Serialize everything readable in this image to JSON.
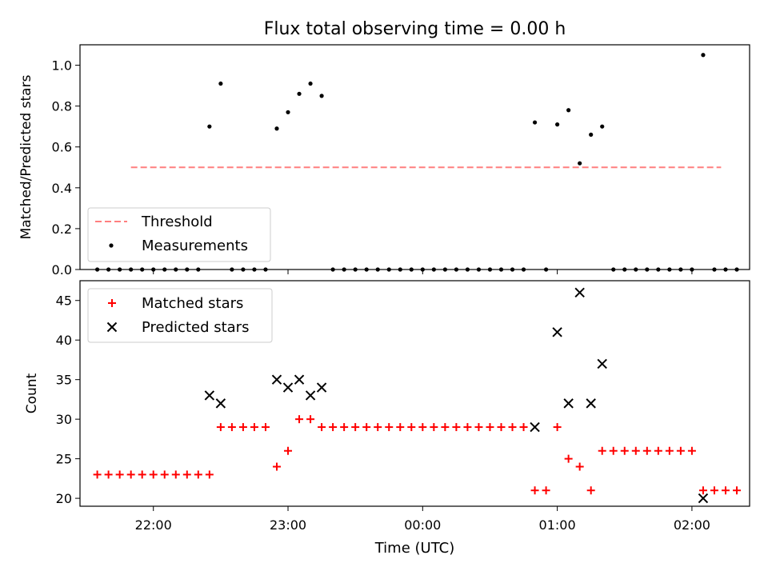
{
  "title": "Flux total observing time = 0.00 h",
  "xlabel": "Time (UTC)",
  "xticks": [
    "22:00",
    "23:00",
    "00:00",
    "01:00",
    "02:00"
  ],
  "colors": {
    "threshold": "#ff7f7f",
    "measurements": "#000000",
    "matched": "#ff0000",
    "predicted": "#000000"
  },
  "chart_data": [
    {
      "type": "scatter",
      "ylabel": "Matched/Predicted stars",
      "ylim": [
        0,
        1.1
      ],
      "yticks": [
        "0.0",
        "0.2",
        "0.4",
        "0.6",
        "0.8",
        "1.0"
      ],
      "threshold": {
        "name": "Threshold",
        "value": 0.5,
        "x_start": "21:50",
        "x_end": "02:13"
      },
      "legend": [
        "Threshold",
        "Measurements"
      ],
      "legend_position": "lower left",
      "measurements": [
        [
          "21:35",
          0
        ],
        [
          "21:40",
          0
        ],
        [
          "21:45",
          0
        ],
        [
          "21:50",
          0
        ],
        [
          "21:55",
          0
        ],
        [
          "22:00",
          0
        ],
        [
          "22:05",
          0
        ],
        [
          "22:10",
          0
        ],
        [
          "22:15",
          0
        ],
        [
          "22:20",
          0
        ],
        [
          "22:25",
          0.7
        ],
        [
          "22:30",
          0.91
        ],
        [
          "22:35",
          0
        ],
        [
          "22:40",
          0
        ],
        [
          "22:45",
          0
        ],
        [
          "22:50",
          0
        ],
        [
          "22:55",
          0.69
        ],
        [
          "23:00",
          0.77
        ],
        [
          "23:05",
          0.86
        ],
        [
          "23:10",
          0.91
        ],
        [
          "23:15",
          0.85
        ],
        [
          "23:20",
          0
        ],
        [
          "23:25",
          0
        ],
        [
          "23:30",
          0
        ],
        [
          "23:35",
          0
        ],
        [
          "23:40",
          0
        ],
        [
          "23:45",
          0
        ],
        [
          "23:50",
          0
        ],
        [
          "23:55",
          0
        ],
        [
          "00:00",
          0
        ],
        [
          "00:05",
          0
        ],
        [
          "00:10",
          0
        ],
        [
          "00:15",
          0
        ],
        [
          "00:20",
          0
        ],
        [
          "00:25",
          0
        ],
        [
          "00:30",
          0
        ],
        [
          "00:35",
          0
        ],
        [
          "00:40",
          0
        ],
        [
          "00:45",
          0
        ],
        [
          "00:50",
          0.72
        ],
        [
          "00:55",
          0
        ],
        [
          "01:00",
          0.71
        ],
        [
          "01:05",
          0.78
        ],
        [
          "01:10",
          0.52
        ],
        [
          "01:15",
          0.66
        ],
        [
          "01:20",
          0.7
        ],
        [
          "01:25",
          0
        ],
        [
          "01:30",
          0
        ],
        [
          "01:35",
          0
        ],
        [
          "01:40",
          0
        ],
        [
          "01:45",
          0
        ],
        [
          "01:50",
          0
        ],
        [
          "01:55",
          0
        ],
        [
          "02:00",
          0
        ],
        [
          "02:05",
          1.05
        ],
        [
          "02:10",
          0
        ],
        [
          "02:15",
          0
        ],
        [
          "02:20",
          0
        ]
      ]
    },
    {
      "type": "scatter",
      "ylabel": "Count",
      "ylim": [
        19,
        47.5
      ],
      "yticks": [
        "20",
        "25",
        "30",
        "35",
        "40",
        "45"
      ],
      "legend": [
        "Matched stars",
        "Predicted stars"
      ],
      "legend_position": "upper left",
      "matched": [
        [
          "21:35",
          23
        ],
        [
          "21:40",
          23
        ],
        [
          "21:45",
          23
        ],
        [
          "21:50",
          23
        ],
        [
          "21:55",
          23
        ],
        [
          "22:00",
          23
        ],
        [
          "22:05",
          23
        ],
        [
          "22:10",
          23
        ],
        [
          "22:15",
          23
        ],
        [
          "22:20",
          23
        ],
        [
          "22:25",
          23
        ],
        [
          "22:30",
          29
        ],
        [
          "22:35",
          29
        ],
        [
          "22:40",
          29
        ],
        [
          "22:45",
          29
        ],
        [
          "22:50",
          29
        ],
        [
          "22:55",
          24
        ],
        [
          "23:00",
          26
        ],
        [
          "23:05",
          30
        ],
        [
          "23:10",
          30
        ],
        [
          "23:15",
          29
        ],
        [
          "23:20",
          29
        ],
        [
          "23:25",
          29
        ],
        [
          "23:30",
          29
        ],
        [
          "23:35",
          29
        ],
        [
          "23:40",
          29
        ],
        [
          "23:45",
          29
        ],
        [
          "23:50",
          29
        ],
        [
          "23:55",
          29
        ],
        [
          "00:00",
          29
        ],
        [
          "00:05",
          29
        ],
        [
          "00:10",
          29
        ],
        [
          "00:15",
          29
        ],
        [
          "00:20",
          29
        ],
        [
          "00:25",
          29
        ],
        [
          "00:30",
          29
        ],
        [
          "00:35",
          29
        ],
        [
          "00:40",
          29
        ],
        [
          "00:45",
          29
        ],
        [
          "00:50",
          21
        ],
        [
          "00:55",
          21
        ],
        [
          "01:00",
          29
        ],
        [
          "01:05",
          25
        ],
        [
          "01:10",
          24
        ],
        [
          "01:15",
          21
        ],
        [
          "01:20",
          26
        ],
        [
          "01:25",
          26
        ],
        [
          "01:30",
          26
        ],
        [
          "01:35",
          26
        ],
        [
          "01:40",
          26
        ],
        [
          "01:45",
          26
        ],
        [
          "01:50",
          26
        ],
        [
          "01:55",
          26
        ],
        [
          "02:00",
          26
        ],
        [
          "02:05",
          21
        ],
        [
          "02:10",
          21
        ],
        [
          "02:15",
          21
        ],
        [
          "02:20",
          21
        ]
      ],
      "predicted": [
        [
          "22:25",
          33
        ],
        [
          "22:30",
          32
        ],
        [
          "22:55",
          35
        ],
        [
          "23:00",
          34
        ],
        [
          "23:05",
          35
        ],
        [
          "23:10",
          33
        ],
        [
          "23:15",
          34
        ],
        [
          "00:50",
          29
        ],
        [
          "01:00",
          41
        ],
        [
          "01:05",
          32
        ],
        [
          "01:10",
          46
        ],
        [
          "01:15",
          32
        ],
        [
          "01:20",
          37
        ],
        [
          "02:05",
          20
        ]
      ]
    }
  ]
}
